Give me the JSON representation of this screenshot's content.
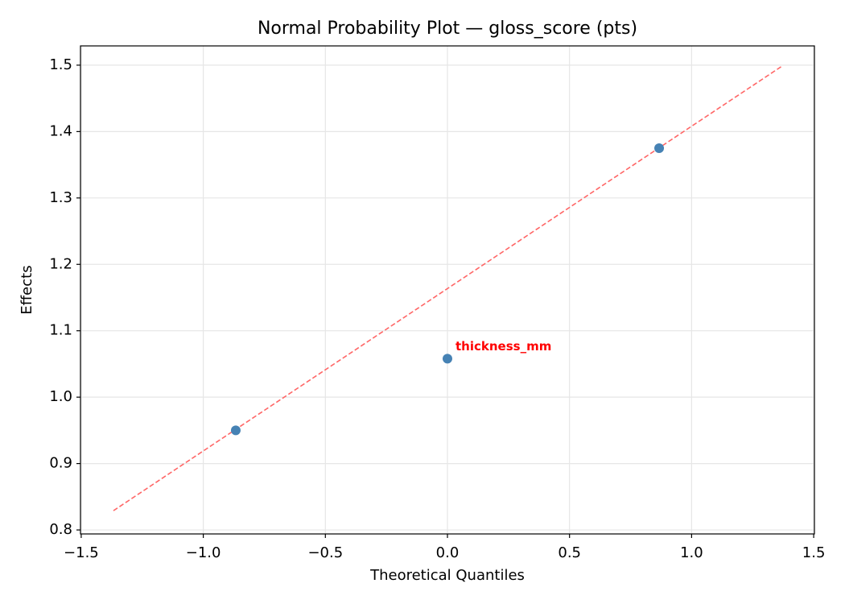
{
  "chart_data": {
    "type": "scatter",
    "title": "Normal Probability Plot — gloss_score (pts)",
    "xlabel": "Theoretical Quantiles",
    "ylabel": "Effects",
    "x": [
      -0.867,
      0,
      0.867
    ],
    "values": [
      0.95,
      1.058,
      1.375
    ],
    "color": "#4682b4",
    "point_labels": [
      null,
      "thickness_mm",
      null
    ],
    "point_label_color": "#ff0000",
    "reference_line": {
      "x": [
        -1.368,
        1.368
      ],
      "values": [
        0.829,
        1.498
      ],
      "color": "#ff6666",
      "dashed": true
    },
    "xlim": [
      -1.503,
      1.503
    ],
    "xticks": [
      {
        "value": -1.5,
        "label": "−1.5"
      },
      {
        "value": -1.0,
        "label": "−1.0"
      },
      {
        "value": -0.5,
        "label": "−0.5"
      },
      {
        "value": 0,
        "label": "0.0"
      },
      0.5,
      {
        "value": 1.0,
        "label": "1.0"
      },
      1.5
    ],
    "ylim": [
      0.794,
      1.529
    ],
    "yticks": [
      0.8,
      0.9,
      {
        "value": 1.0,
        "label": "1.0"
      },
      1.1,
      1.2,
      1.3,
      1.4,
      1.5
    ],
    "grid": true
  }
}
